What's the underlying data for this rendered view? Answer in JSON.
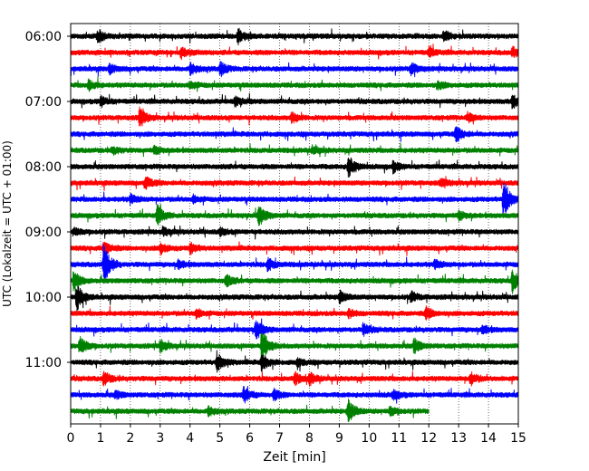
{
  "chart_data": {
    "type": "line",
    "title": "",
    "xlabel": "Zeit  [min]",
    "ylabel": "UTC (Lokalzeit = UTC + 01:00)",
    "xlim": [
      0,
      15
    ],
    "x_ticks": [
      "0",
      "1",
      "2",
      "3",
      "4",
      "5",
      "6",
      "7",
      "8",
      "9",
      "10",
      "11",
      "12",
      "13",
      "14",
      "15"
    ],
    "y_ticks": [
      "06:00",
      "07:00",
      "08:00",
      "09:00",
      "10:00",
      "11:00"
    ],
    "grid": "vertical dotted at each minute",
    "trace_interval_min": 15,
    "colors": [
      "#000000",
      "#ff0000",
      "#0000ff",
      "#008000"
    ],
    "traces": [
      {
        "start": "06:00",
        "end_min": 15,
        "events": [
          {
            "t": 0.9,
            "a": 1.0
          },
          {
            "t": 5.6,
            "a": 1.1
          },
          {
            "t": 12.5,
            "a": 0.9
          }
        ]
      },
      {
        "start": "06:15",
        "end_min": 15,
        "events": [
          {
            "t": 3.7,
            "a": 0.8
          },
          {
            "t": 12.0,
            "a": 0.7
          },
          {
            "t": 14.8,
            "a": 0.7
          }
        ]
      },
      {
        "start": "06:30",
        "end_min": 15,
        "events": [
          {
            "t": 1.3,
            "a": 0.7
          },
          {
            "t": 4.0,
            "a": 1.0
          },
          {
            "t": 5.0,
            "a": 1.1
          },
          {
            "t": 11.4,
            "a": 1.0
          }
        ]
      },
      {
        "start": "06:45",
        "end_min": 15,
        "events": [
          {
            "t": 0.6,
            "a": 0.8
          },
          {
            "t": 4.0,
            "a": 0.6
          },
          {
            "t": 12.3,
            "a": 0.6
          }
        ]
      },
      {
        "start": "07:00",
        "end_min": 15,
        "events": [
          {
            "t": 1.0,
            "a": 0.8
          },
          {
            "t": 5.5,
            "a": 0.7
          },
          {
            "t": 14.8,
            "a": 1.2
          }
        ]
      },
      {
        "start": "07:15",
        "end_min": 15,
        "events": [
          {
            "t": 2.3,
            "a": 1.5
          },
          {
            "t": 7.4,
            "a": 0.8
          },
          {
            "t": 13.3,
            "a": 0.7
          }
        ]
      },
      {
        "start": "07:30",
        "end_min": 15,
        "events": [
          {
            "t": 12.9,
            "a": 1.3
          }
        ]
      },
      {
        "start": "07:45",
        "end_min": 15,
        "events": [
          {
            "t": 1.4,
            "a": 0.6
          },
          {
            "t": 2.8,
            "a": 0.6
          },
          {
            "t": 8.1,
            "a": 0.6
          }
        ]
      },
      {
        "start": "08:00",
        "end_min": 15,
        "events": [
          {
            "t": 9.3,
            "a": 1.8
          },
          {
            "t": 10.8,
            "a": 0.8
          }
        ]
      },
      {
        "start": "08:15",
        "end_min": 15,
        "events": [
          {
            "t": 2.5,
            "a": 1.0
          },
          {
            "t": 12.4,
            "a": 0.6
          }
        ]
      },
      {
        "start": "08:30",
        "end_min": 15,
        "events": [
          {
            "t": 2.0,
            "a": 0.7
          },
          {
            "t": 4.1,
            "a": 0.5
          },
          {
            "t": 14.5,
            "a": 3.2
          }
        ]
      },
      {
        "start": "08:45",
        "end_min": 15,
        "events": [
          {
            "t": 2.9,
            "a": 1.6
          },
          {
            "t": 6.3,
            "a": 1.6
          },
          {
            "t": 13.0,
            "a": 0.7
          }
        ]
      },
      {
        "start": "09:00",
        "end_min": 15,
        "events": [
          {
            "t": 0.1,
            "a": 0.6
          },
          {
            "t": 3.1,
            "a": 0.6
          },
          {
            "t": 5.0,
            "a": 0.5
          }
        ]
      },
      {
        "start": "09:15",
        "end_min": 15,
        "events": [
          {
            "t": 1.1,
            "a": 1.2
          },
          {
            "t": 3.0,
            "a": 0.9
          },
          {
            "t": 4.0,
            "a": 0.8
          }
        ]
      },
      {
        "start": "09:30",
        "end_min": 15,
        "events": [
          {
            "t": 1.1,
            "a": 3.3
          },
          {
            "t": 3.6,
            "a": 0.6
          },
          {
            "t": 6.6,
            "a": 1.0
          },
          {
            "t": 12.2,
            "a": 0.7
          }
        ]
      },
      {
        "start": "09:45",
        "end_min": 15,
        "events": [
          {
            "t": 0.1,
            "a": 1.5
          },
          {
            "t": 5.2,
            "a": 0.9
          },
          {
            "t": 14.8,
            "a": 1.8
          }
        ]
      },
      {
        "start": "10:00",
        "end_min": 15,
        "events": [
          {
            "t": 0.2,
            "a": 2.0
          },
          {
            "t": 9.0,
            "a": 0.9
          },
          {
            "t": 11.4,
            "a": 0.8
          }
        ]
      },
      {
        "start": "10:15",
        "end_min": 15,
        "events": [
          {
            "t": 4.2,
            "a": 0.7
          },
          {
            "t": 9.3,
            "a": 0.6
          },
          {
            "t": 11.9,
            "a": 1.0
          }
        ]
      },
      {
        "start": "10:30",
        "end_min": 15,
        "events": [
          {
            "t": 6.2,
            "a": 1.6
          },
          {
            "t": 9.8,
            "a": 0.9
          },
          {
            "t": 13.8,
            "a": 0.6
          }
        ]
      },
      {
        "start": "10:45",
        "end_min": 15,
        "events": [
          {
            "t": 0.3,
            "a": 1.5
          },
          {
            "t": 3.0,
            "a": 0.9
          },
          {
            "t": 6.4,
            "a": 2.8
          },
          {
            "t": 11.5,
            "a": 1.2
          }
        ]
      },
      {
        "start": "11:00",
        "end_min": 15,
        "events": [
          {
            "t": 4.9,
            "a": 1.5
          },
          {
            "t": 6.4,
            "a": 1.4
          },
          {
            "t": 7.6,
            "a": 0.6
          }
        ]
      },
      {
        "start": "11:15",
        "end_min": 15,
        "events": [
          {
            "t": 1.1,
            "a": 1.1
          },
          {
            "t": 7.5,
            "a": 0.9
          },
          {
            "t": 8.0,
            "a": 0.9
          },
          {
            "t": 13.4,
            "a": 1.0
          }
        ]
      },
      {
        "start": "11:30",
        "end_min": 15,
        "events": [
          {
            "t": 1.5,
            "a": 0.6
          },
          {
            "t": 5.8,
            "a": 1.2
          },
          {
            "t": 6.8,
            "a": 0.8
          },
          {
            "t": 10.8,
            "a": 0.7
          }
        ]
      },
      {
        "start": "11:45",
        "end_min": 12,
        "events": [
          {
            "t": 4.6,
            "a": 0.8
          },
          {
            "t": 9.3,
            "a": 1.8
          },
          {
            "t": 10.7,
            "a": 0.7
          }
        ]
      }
    ]
  }
}
